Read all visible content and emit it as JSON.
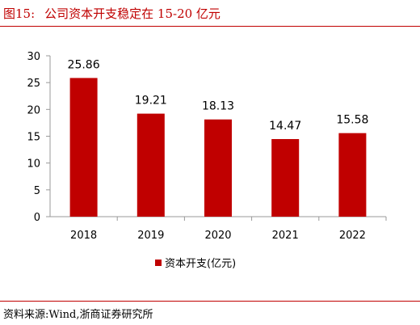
{
  "header": {
    "figure_label": "图15:",
    "title_text": "公司资本开支稳定在 15-20 亿元"
  },
  "footer": {
    "source": "资料来源:Wind,浙商证券研究所"
  },
  "colors": {
    "accent": "#c00000",
    "bar": "#c00000",
    "axis": "#999999"
  },
  "chart_data": {
    "type": "bar",
    "title": "",
    "xlabel": "",
    "ylabel": "",
    "categories": [
      "2018",
      "2019",
      "2020",
      "2021",
      "2022"
    ],
    "series": [
      {
        "name": "资本开支(亿元)",
        "values": [
          25.86,
          19.21,
          18.13,
          14.47,
          15.58
        ]
      }
    ],
    "data_labels": [
      "25.86",
      "19.21",
      "18.13",
      "14.47",
      "15.58"
    ],
    "ylim": [
      0,
      30
    ],
    "yticks": [
      0,
      5,
      10,
      15,
      20,
      25,
      30
    ],
    "grid": false,
    "legend": "bottom"
  }
}
